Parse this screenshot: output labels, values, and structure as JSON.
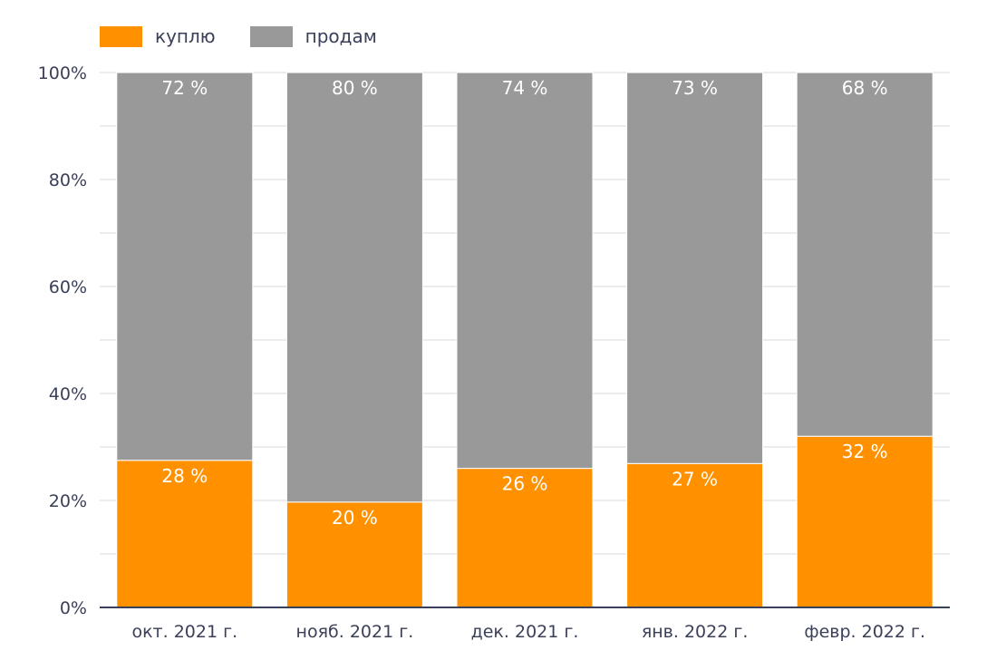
{
  "chart_data": {
    "type": "bar",
    "stacked": true,
    "categories": [
      "окт. 2021 г.",
      "нояб. 2021 г.",
      "дек. 2021 г.",
      "янв. 2022 г.",
      "февр. 2022 г."
    ],
    "series": [
      {
        "name": "куплю",
        "color": "#ff9100",
        "values": [
          27.5,
          19.7,
          26.0,
          26.9,
          32.0
        ],
        "data_labels": [
          "28 %",
          "20 %",
          "26 %",
          "27 %",
          "32 %"
        ]
      },
      {
        "name": "продам",
        "color": "#999999",
        "values": [
          72.5,
          80.3,
          74.0,
          73.1,
          68.0
        ],
        "data_labels": [
          "72 %",
          "80 %",
          "74 %",
          "73 %",
          "68 %"
        ]
      }
    ],
    "y_ticks": [
      "0%",
      "20%",
      "40%",
      "60%",
      "80%",
      "100%"
    ],
    "ylim": [
      0,
      100
    ],
    "grid": true,
    "legend_position": "top-left",
    "axis_color": "#3a3f5a"
  }
}
